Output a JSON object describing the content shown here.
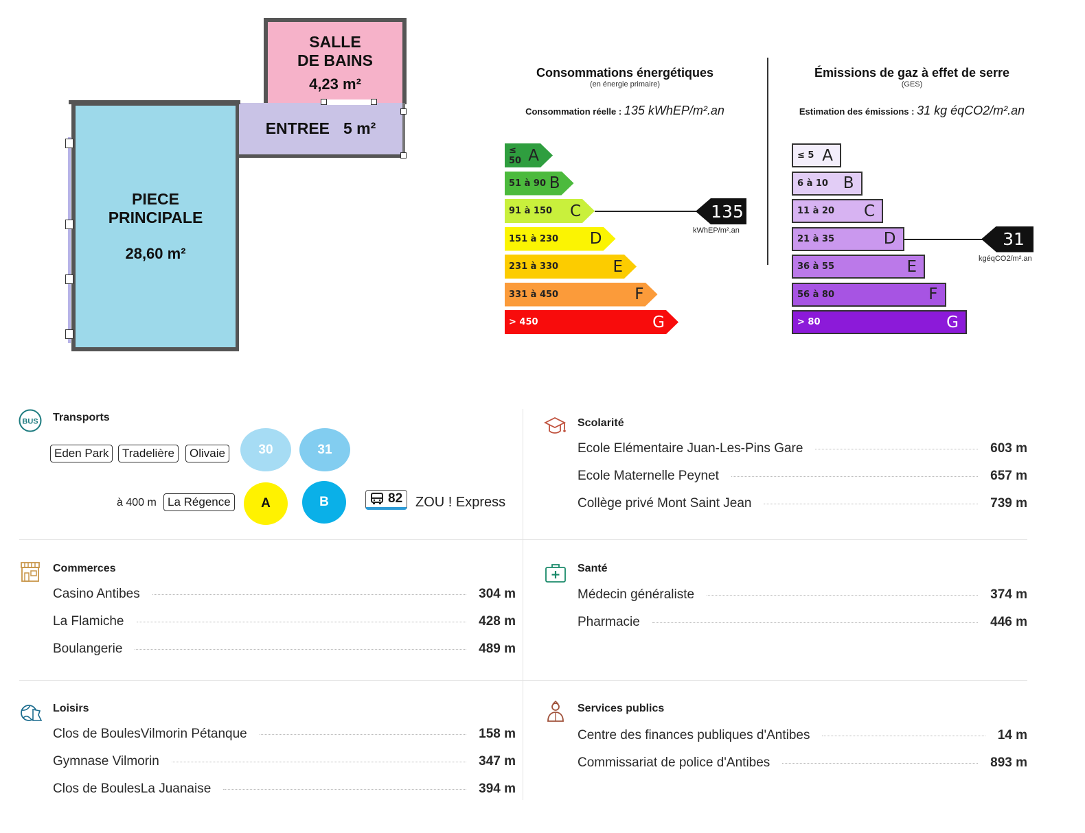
{
  "floor_plan": {
    "main_room": {
      "name_line1": "PIECE",
      "name_line2": "PRINCIPALE",
      "area": "28,60 m²"
    },
    "bathroom": {
      "name_line1": "SALLE",
      "name_line2": "DE BAINS",
      "area": "4,23 m²"
    },
    "entrance": {
      "name": "ENTREE",
      "area": "5 m²"
    }
  },
  "energy": {
    "title": "Consommations énergétiques",
    "subtitle": "(en énergie primaire)",
    "line_label": "Consommation réelle :",
    "line_value": "135 kWhEP/m².an",
    "classes": [
      {
        "range": "≤ 50",
        "letter": "A",
        "color": "#2f9e3f"
      },
      {
        "range": "51 à 90",
        "letter": "B",
        "color": "#4cba3d"
      },
      {
        "range": "91 à 150",
        "letter": "C",
        "color": "#c9f03c"
      },
      {
        "range": "151 à 230",
        "letter": "D",
        "color": "#fbf402"
      },
      {
        "range": "231 à 330",
        "letter": "E",
        "color": "#fccc00"
      },
      {
        "range": "331 à 450",
        "letter": "F",
        "color": "#fb9b3a"
      },
      {
        "range": "> 450",
        "letter": "G",
        "color": "#f80c0c"
      }
    ],
    "active_class": "C",
    "value": "135",
    "unit": "kWhEP/m².an"
  },
  "ges": {
    "title": "Émissions de gaz à effet de serre",
    "subtitle": "(GES)",
    "line_label": "Estimation des émissions :",
    "line_value": "31 kg éqCO2/m².an",
    "classes": [
      {
        "range": "≤ 5",
        "letter": "A",
        "color": "#f3eefb"
      },
      {
        "range": "6 à 10",
        "letter": "B",
        "color": "#e2cdf6"
      },
      {
        "range": "11 à 20",
        "letter": "C",
        "color": "#d7b3f2"
      },
      {
        "range": "21 à 35",
        "letter": "D",
        "color": "#ca98ee"
      },
      {
        "range": "36 à 55",
        "letter": "E",
        "color": "#bb79e9"
      },
      {
        "range": "56 à 80",
        "letter": "F",
        "color": "#a754e3"
      },
      {
        "range": "> 80",
        "letter": "G",
        "color": "#8c1ad9"
      }
    ],
    "active_class": "D",
    "value": "31",
    "unit": "kgéqCO2/m².an"
  },
  "transports": {
    "title": "Transports",
    "stops_row1": [
      "Eden Park",
      "Tradelière",
      "Olivaie"
    ],
    "lines_row1": [
      {
        "label": "30",
        "color": "#a6dcf4"
      },
      {
        "label": "31",
        "color": "#82cdf0"
      }
    ],
    "distance": "à 400 m",
    "stop_row2": "La Régence",
    "lines_row2": [
      {
        "label": "A",
        "color": "#fff200",
        "text": "#111"
      },
      {
        "label": "B",
        "color": "#0ab0e8",
        "text": "#ffffff"
      }
    ],
    "bus_number": "82",
    "bus_name": "ZOU ! Express"
  },
  "scolarite": {
    "title": "Scolarité",
    "items": [
      {
        "name": "Ecole Elémentaire Juan-Les-Pins Gare",
        "distance": "603 m"
      },
      {
        "name": "Ecole Maternelle Peynet",
        "distance": "657 m"
      },
      {
        "name": "Collège privé Mont Saint Jean",
        "distance": "739 m"
      }
    ]
  },
  "commerces": {
    "title": "Commerces",
    "items": [
      {
        "name": "Casino Antibes",
        "distance": "304 m"
      },
      {
        "name": "La Flamiche",
        "distance": "428 m"
      },
      {
        "name": "Boulangerie",
        "distance": "489 m"
      }
    ]
  },
  "sante": {
    "title": "Santé",
    "items": [
      {
        "name": "Médecin généraliste",
        "distance": "374 m"
      },
      {
        "name": "Pharmacie",
        "distance": "446 m"
      }
    ]
  },
  "loisirs": {
    "title": "Loisirs",
    "items": [
      {
        "name": "Clos de BoulesVilmorin Pétanque",
        "distance": "158 m"
      },
      {
        "name": "Gymnase Vilmorin",
        "distance": "347 m"
      },
      {
        "name": "Clos de BoulesLa Juanaise",
        "distance": "394 m"
      }
    ]
  },
  "services": {
    "title": "Services publics",
    "items": [
      {
        "name": "Centre des finances publiques d'Antibes",
        "distance": "14 m"
      },
      {
        "name": "Commissariat de police d'Antibes",
        "distance": "893 m"
      }
    ]
  },
  "icons": {
    "transports": "bus-icon",
    "scolarite": "graduation-cap-icon",
    "commerces": "shop-icon",
    "sante": "first-aid-kit-icon",
    "loisirs": "leisure-icon",
    "services": "person-icon"
  }
}
